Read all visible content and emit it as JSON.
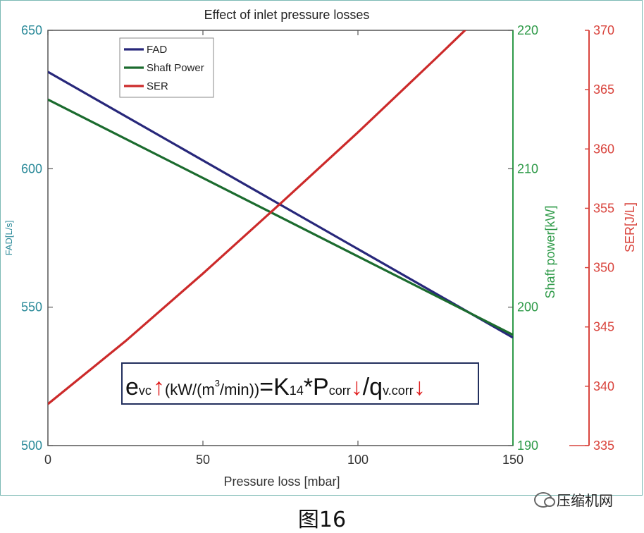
{
  "chart_data": {
    "type": "line",
    "title": "Effect of inlet pressure losses",
    "xlabel": "Pressure loss [mbar]",
    "xlim": [
      0,
      150
    ],
    "xticks": [
      0,
      50,
      100,
      150
    ],
    "axes": {
      "left": {
        "label": "FAD[L/s]",
        "ylim": [
          500,
          650
        ],
        "ticks": [
          500,
          550,
          600,
          650
        ],
        "color": "#2b8a99"
      },
      "right1": {
        "label": "Shaft power[kW]",
        "ylim": [
          190,
          220
        ],
        "ticks": [
          190,
          200,
          210,
          220
        ],
        "color": "#2e9a48"
      },
      "right2": {
        "label": "SER[J/L]",
        "ylim": [
          335,
          370
        ],
        "ticks": [
          335,
          340,
          345,
          350,
          355,
          360,
          365,
          370
        ],
        "color": "#d9453e"
      }
    },
    "series": [
      {
        "name": "FAD",
        "axis": "left",
        "color": "#27277a",
        "x": [
          0,
          150
        ],
        "y": [
          635,
          539
        ]
      },
      {
        "name": "Shaft Power",
        "axis": "right1",
        "color": "#1b6b2e",
        "x": [
          0,
          150
        ],
        "y": [
          215,
          198
        ]
      },
      {
        "name": "SER",
        "axis": "right2",
        "color": "#cc2a2a",
        "x": [
          0,
          25,
          50,
          75,
          100,
          125,
          150
        ],
        "y": [
          338.5,
          343.8,
          349.5,
          355.4,
          361.4,
          367.6,
          373.9
        ]
      }
    ],
    "legend": {
      "position": "top-left",
      "entries": [
        "FAD",
        "Shaft Power",
        "SER"
      ]
    },
    "annotation": {
      "e": "e",
      "e_sub": "vc",
      "unit_open": "(kW/(m",
      "unit_sup": "3",
      "unit_close": "/min))",
      "eq": "=K",
      "k_sub": "14",
      "star": "*P",
      "p_sub": "corr",
      "slash": "/q",
      "q_sub": "v.corr",
      "up_arrow": "↑",
      "down_arrow": "↓"
    }
  },
  "caption": "图16",
  "watermark": "压缩机网"
}
